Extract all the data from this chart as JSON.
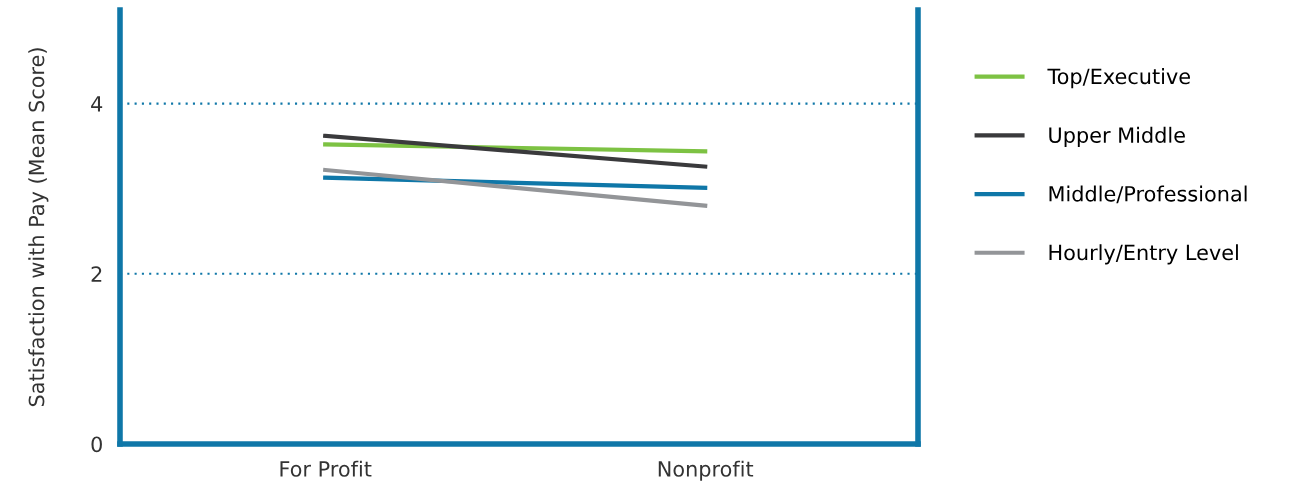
{
  "chart_data": {
    "type": "line",
    "ylabel": "Satisfaction with Pay (Mean Score)",
    "categories": [
      "For Profit",
      "Nonprofit"
    ],
    "series": [
      {
        "name": "Top/Executive",
        "color": "#7dc243",
        "values": [
          3.52,
          3.44
        ]
      },
      {
        "name": "Upper Middle",
        "color": "#3a3a3c",
        "values": [
          3.62,
          3.26
        ]
      },
      {
        "name": "Middle/Professional",
        "color": "#0f77a8",
        "values": [
          3.13,
          3.01
        ]
      },
      {
        "name": "Hourly/Entry Level",
        "color": "#939598",
        "values": [
          3.22,
          2.8
        ]
      }
    ],
    "ylim": [
      0,
      5.1
    ],
    "yticks": [
      0,
      2,
      4
    ],
    "grid": "y",
    "legend": "right",
    "marker": "none",
    "line_style": "solid"
  }
}
